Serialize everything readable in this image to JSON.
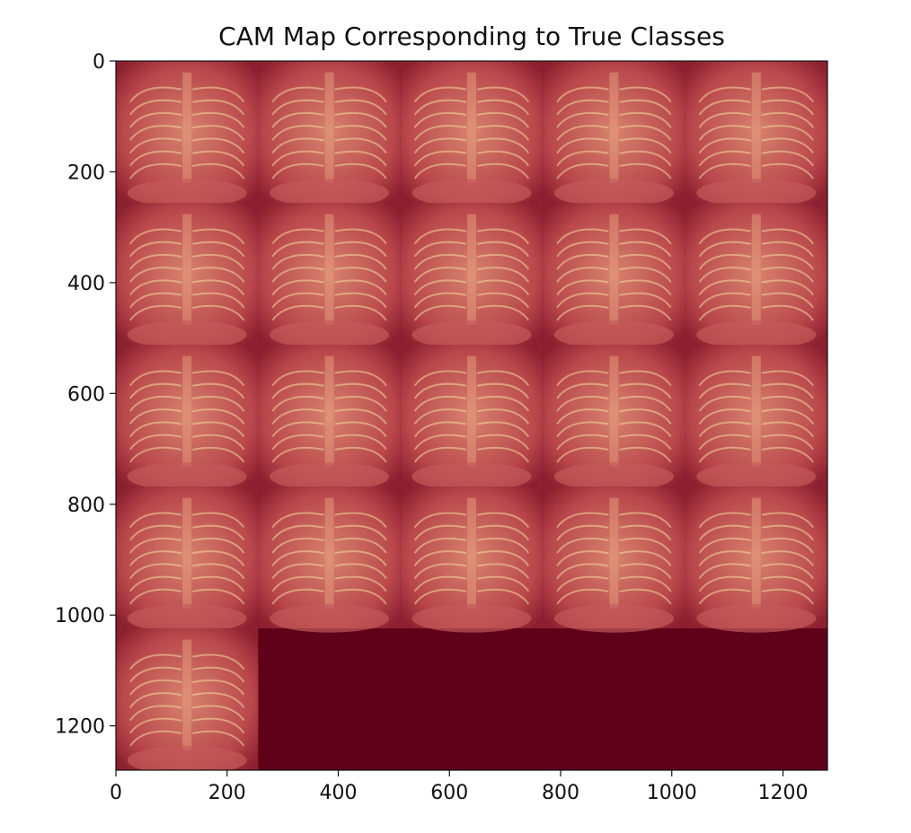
{
  "chart_data": {
    "type": "heatmap",
    "title": "CAM Map Corresponding to True Classes",
    "xlabel": "",
    "ylabel": "",
    "xlim": [
      0,
      1280
    ],
    "ylim": [
      1280,
      0
    ],
    "xticks": [
      0,
      200,
      400,
      600,
      800,
      1000,
      1200
    ],
    "yticks": [
      0,
      200,
      400,
      600,
      800,
      1000,
      1200
    ],
    "grid": false,
    "grid_layout": {
      "rows": 5,
      "cols": 5,
      "tile_size": 256,
      "filled_tiles": 21
    },
    "colors": {
      "background_fill": "#5e0119",
      "overlay": "#b8444a",
      "highlight": "#f3d9a0",
      "hot": "#3f7fbf"
    }
  }
}
